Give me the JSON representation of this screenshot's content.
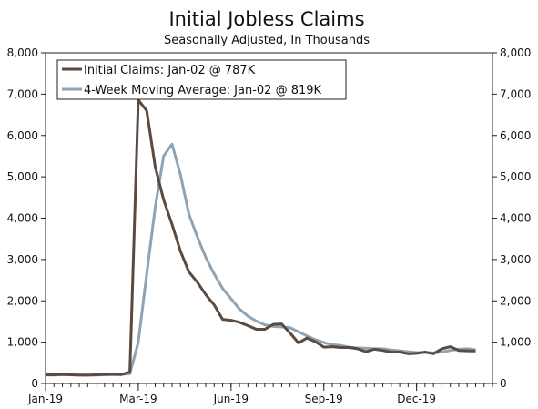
{
  "chart_data": {
    "type": "line",
    "title": "Initial Jobless Claims",
    "subtitle": "Seasonally Adjusted, In Thousands",
    "xlabel": "",
    "ylabel": "",
    "ylim": [
      0,
      8000
    ],
    "yticks": [
      0,
      1000,
      2000,
      3000,
      4000,
      5000,
      6000,
      7000,
      8000
    ],
    "ytick_labels": [
      "0",
      "1,000",
      "2,000",
      "3,000",
      "4,000",
      "5,000",
      "6,000",
      "7,000",
      "8,000"
    ],
    "xlim": [
      0,
      53
    ],
    "xticks": [
      0,
      11,
      22,
      33,
      44
    ],
    "xtick_labels": [
      "Jan-19",
      "Mar-19",
      "Jun-19",
      "Sep-19",
      "Dec-19"
    ],
    "grid": false,
    "legend": "top-left",
    "series": [
      {
        "name": "Initial Claims: Jan-02 @ 787K",
        "color": "#5a4a3f",
        "values": [
          210,
          210,
          220,
          210,
          200,
          200,
          210,
          220,
          220,
          215,
          280,
          6860,
          6600,
          5250,
          4450,
          3850,
          3200,
          2700,
          2450,
          2150,
          1900,
          1550,
          1530,
          1480,
          1400,
          1310,
          1310,
          1430,
          1440,
          1220,
          980,
          1100,
          1010,
          880,
          890,
          870,
          870,
          840,
          770,
          830,
          800,
          760,
          760,
          720,
          730,
          760,
          720,
          840,
          890,
          800,
          790,
          787
        ]
      },
      {
        "name": "4-Week Moving Average: Jan-02 @ 819K",
        "color": "#8fa3b3",
        "values": [
          205,
          205,
          210,
          210,
          210,
          205,
          205,
          210,
          215,
          220,
          235,
          1000,
          2650,
          4250,
          5500,
          5790,
          5050,
          4100,
          3550,
          3050,
          2650,
          2300,
          2050,
          1800,
          1630,
          1510,
          1420,
          1380,
          1370,
          1350,
          1250,
          1150,
          1060,
          990,
          940,
          920,
          880,
          860,
          850,
          840,
          840,
          810,
          790,
          770,
          750,
          750,
          740,
          760,
          800,
          830,
          840,
          819
        ]
      }
    ]
  }
}
